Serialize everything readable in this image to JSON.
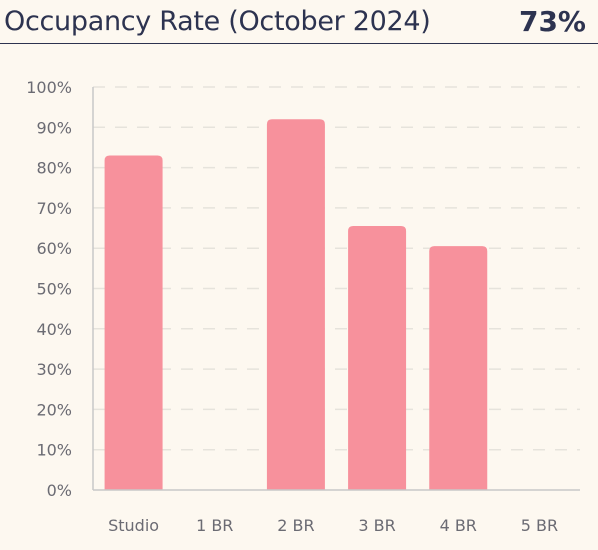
{
  "header": {
    "title": "Occupancy Rate (October 2024)",
    "value": "73%"
  },
  "colors": {
    "bar": "#f7919c",
    "grid": "#e6e3dc",
    "axis": "#c8c8c8",
    "text": "#2d3350",
    "tick": "#6b6b73",
    "background": "#fdf8f0"
  },
  "chart_data": {
    "type": "bar",
    "title": "Occupancy Rate (October 2024)",
    "xlabel": "",
    "ylabel": "",
    "categories": [
      "Studio",
      "1 BR",
      "2 BR",
      "3 BR",
      "4 BR",
      "5 BR"
    ],
    "values": [
      83,
      0,
      92,
      65.5,
      60.5,
      0
    ],
    "ylim": [
      0,
      100
    ],
    "yticks": [
      0,
      10,
      20,
      30,
      40,
      50,
      60,
      70,
      80,
      90,
      100
    ],
    "ytick_labels": [
      "0%",
      "10%",
      "20%",
      "30%",
      "40%",
      "50%",
      "60%",
      "70%",
      "80%",
      "90%",
      "100%"
    ],
    "grid": true,
    "legend": "none"
  }
}
